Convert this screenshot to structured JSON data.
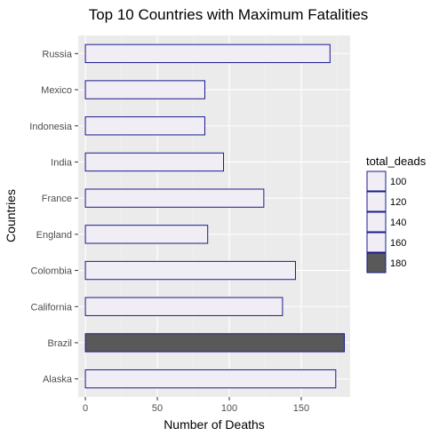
{
  "chart_data": {
    "type": "bar",
    "orientation": "horizontal",
    "title": "Top 10 Countries with Maximum Fatalities",
    "xlabel": "Number of Deaths",
    "ylabel": "Countries",
    "categories": [
      "Alaska",
      "Brazil",
      "California",
      "Colombia",
      "England",
      "France",
      "India",
      "Indonesia",
      "Mexico",
      "Russia"
    ],
    "values": [
      174,
      180,
      137,
      146,
      85,
      124,
      96,
      83,
      83,
      170
    ],
    "x_ticks": [
      "0",
      "50",
      "100",
      "150"
    ],
    "xlim": [
      -5,
      184
    ],
    "grid": true,
    "legend": {
      "title": "total_deads",
      "placement": "right",
      "entries": [
        "100",
        "120",
        "140",
        "160",
        "180"
      ],
      "fills": [
        "#f0eef4",
        "#f0eef4",
        "#f0eef4",
        "#f0eef4",
        "#595959"
      ]
    },
    "colors": {
      "panel_background": "#ebebeb",
      "grid_major": "#ffffff",
      "grid_minor": "#f3f3f3",
      "bar_outline": "#1a1a8c",
      "bar_fill_light": "#f0eef4",
      "bar_fill_dark": "#595959"
    },
    "dark_threshold": 178
  }
}
